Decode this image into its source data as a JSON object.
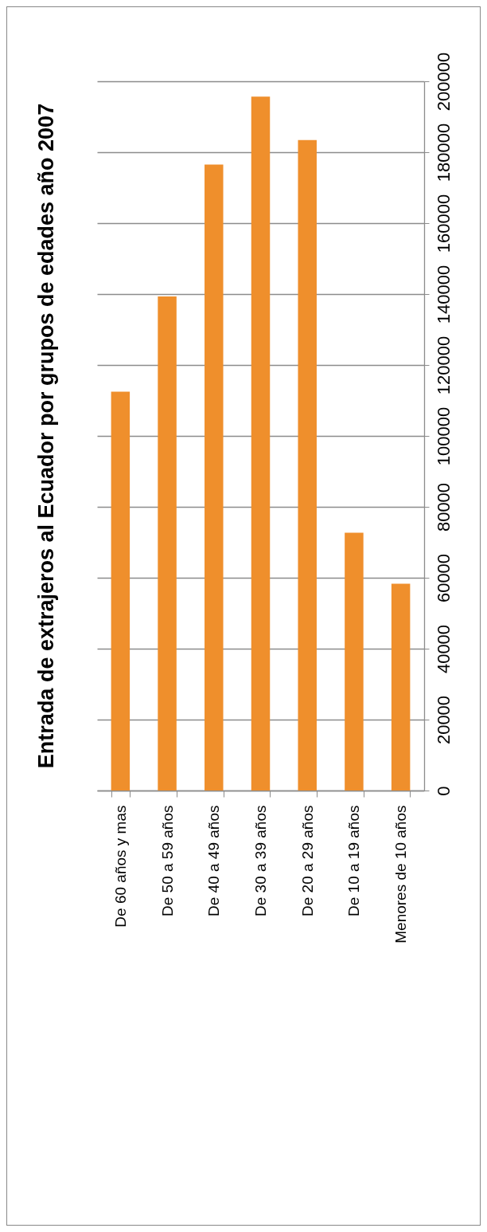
{
  "chart_data": {
    "type": "bar",
    "title": "Entrada de extrajeros al Ecuador por grupos de edades año 2007",
    "categories": [
      "De 60 años y mas",
      "De 50 a 59 años",
      "De 40 a 49 años",
      "De 30 a 39 años",
      "De 20 a 29 años",
      "De 10 a 19 años",
      "Menores de 10 años"
    ],
    "values": [
      112500,
      139300,
      176500,
      195700,
      183400,
      72700,
      58300
    ],
    "color": "#ef8f2c",
    "ylim": [
      0,
      200000
    ],
    "yticks": [
      0,
      20000,
      40000,
      60000,
      80000,
      100000,
      120000,
      140000,
      160000,
      180000,
      200000
    ],
    "grid": "y"
  }
}
